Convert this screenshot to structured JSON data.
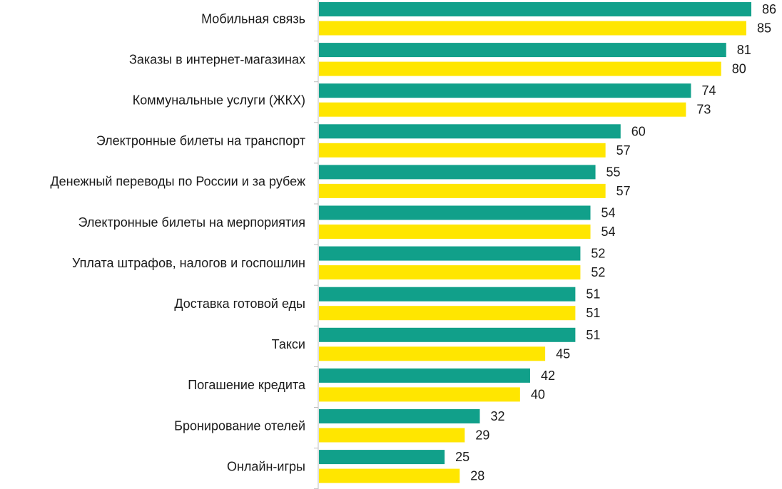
{
  "chart_data": {
    "type": "bar",
    "orientation": "horizontal",
    "categories": [
      "Мобильная связь",
      "Заказы в интернет-магазинах",
      "Коммунальные услуги (ЖКХ)",
      "Электронные билеты на транспорт",
      "Денежный переводы по России и за рубеж",
      "Электронные билеты на мерпориятия",
      "Уплата штрафов, налогов и госпошлин",
      "Доставка готовой еды",
      "Такси",
      "Погашение кредита",
      "Бронирование отелей",
      "Онлайн-игры"
    ],
    "series": [
      {
        "color": "#11a08a",
        "values": [
          86,
          81,
          74,
          60,
          55,
          54,
          52,
          51,
          51,
          42,
          32,
          25
        ]
      },
      {
        "color": "#ffe600",
        "values": [
          85,
          80,
          73,
          57,
          57,
          54,
          52,
          51,
          45,
          40,
          29,
          28
        ]
      }
    ],
    "xlim": [
      0,
      86
    ],
    "gridlines": false,
    "legend": "none",
    "data_labels": true
  }
}
